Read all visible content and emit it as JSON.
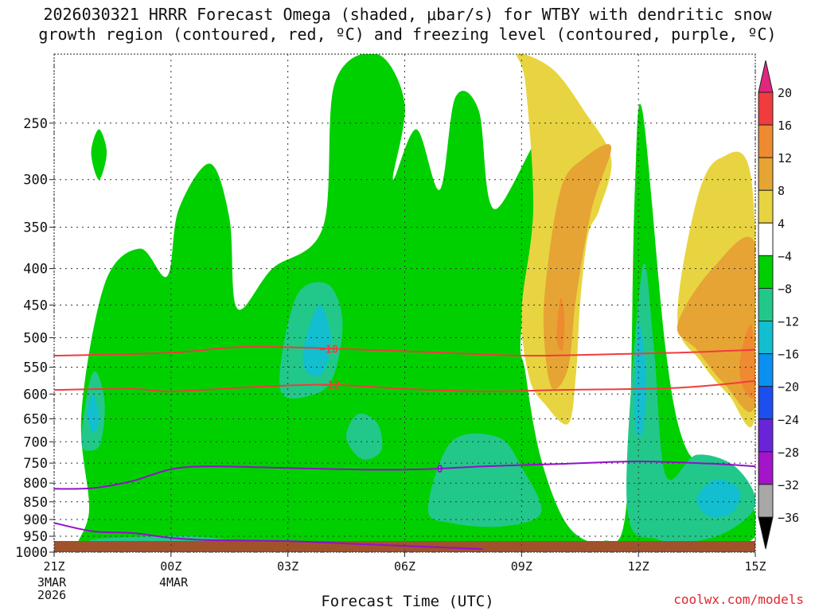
{
  "title": {
    "line1": "2026030321 HRRR Forecast Omega (shaded, μbar/s) for WTBY with dendritic snow",
    "line2": "growth region (contoured, red, ºC) and freezing level (contoured, purple, ºC)"
  },
  "xlabel": "Forecast Time (UTC)",
  "credit": "coolwx.com/models",
  "chart_data": {
    "type": "heatmap",
    "title": "2026030321 HRRR Forecast Omega (shaded, μbar/s) for WTBY with dendritic snow growth region (contoured, red, ºC) and freezing level (contoured, purple, ºC)",
    "xlabel": "Forecast Time (UTC)",
    "ylabel": "",
    "x_ticks": [
      {
        "hour": 0,
        "label": "21Z"
      },
      {
        "hour": 3,
        "label": "00Z"
      },
      {
        "hour": 6,
        "label": "03Z"
      },
      {
        "hour": 9,
        "label": "06Z"
      },
      {
        "hour": 12,
        "label": "09Z"
      },
      {
        "hour": 15,
        "label": "12Z"
      },
      {
        "hour": 18,
        "label": "15Z"
      }
    ],
    "x_date_labels": [
      {
        "hour": 0,
        "lines": [
          "3MAR",
          "2026"
        ]
      },
      {
        "hour": 3,
        "lines": [
          "4MAR"
        ]
      }
    ],
    "y_ticks": [
      250,
      300,
      350,
      400,
      450,
      500,
      550,
      600,
      650,
      700,
      750,
      800,
      850,
      900,
      950,
      1000
    ],
    "ylim": [
      1000,
      200
    ],
    "xlim_hours": [
      0,
      18
    ],
    "grid": true,
    "colorbar": {
      "labels": [
        "20",
        "16",
        "12",
        "8",
        "4",
        "-4",
        "-8",
        "-12",
        "-16",
        "-20",
        "-24",
        "-28",
        "-32",
        "-36"
      ],
      "colors": [
        "#e0267f",
        "#f03c3c",
        "#ee8a30",
        "#e6a435",
        "#e8d440",
        "#ffffff",
        "#00d000",
        "#22c88a",
        "#12bed0",
        "#0a90f0",
        "#1c4ef0",
        "#6a24d8",
        "#a414c8",
        "#a8a8a8",
        "#000000"
      ]
    },
    "omega_regions": [
      {
        "level": "-4 to -8",
        "color": "#00d000",
        "hours_pressures": [
          [
            0.6,
            990
          ],
          [
            0.9,
            870
          ],
          [
            0.7,
            640
          ],
          [
            1.3,
            420
          ],
          [
            2.2,
            375
          ],
          [
            2.9,
            410
          ],
          [
            3.2,
            330
          ],
          [
            4.0,
            285
          ],
          [
            4.5,
            340
          ],
          [
            4.7,
            455
          ],
          [
            5.6,
            400
          ],
          [
            6.9,
            350
          ],
          [
            7.2,
            220
          ],
          [
            8.3,
            200
          ],
          [
            9.0,
            235
          ],
          [
            8.7,
            300
          ],
          [
            9.3,
            255
          ],
          [
            9.9,
            310
          ],
          [
            10.3,
            230
          ],
          [
            10.9,
            240
          ],
          [
            11.3,
            330
          ],
          [
            12.6,
            260
          ],
          [
            12.0,
            480
          ],
          [
            12.1,
            560
          ],
          [
            12.5,
            740
          ],
          [
            13.2,
            920
          ],
          [
            14.1,
            965
          ],
          [
            14.7,
            850
          ],
          [
            14.9,
            320
          ],
          [
            15.1,
            240
          ],
          [
            15.7,
            520
          ],
          [
            16.2,
            710
          ],
          [
            16.9,
            760
          ],
          [
            17.7,
            800
          ],
          [
            18.0,
            950
          ],
          [
            16.8,
            975
          ],
          [
            15.1,
            970
          ],
          [
            13.6,
            985
          ],
          [
            11.3,
            1005
          ],
          [
            8.0,
            1000
          ],
          [
            6.0,
            985
          ],
          [
            3.5,
            990
          ],
          [
            1.5,
            1005
          ]
        ]
      },
      {
        "level": "-4 to -8 (isolated)",
        "color": "#00d000",
        "hours_pressures": [
          [
            1.15,
            255
          ],
          [
            1.35,
            275
          ],
          [
            1.15,
            300
          ],
          [
            0.95,
            275
          ]
        ]
      },
      {
        "level": "-8 to -12",
        "color": "#22c88a",
        "hours_pressures": [
          [
            0.7,
            700
          ],
          [
            0.9,
            580
          ],
          [
            1.1,
            560
          ],
          [
            1.3,
            620
          ],
          [
            1.2,
            700
          ],
          [
            0.95,
            720
          ]
        ]
      },
      {
        "level": "-8 to -12",
        "color": "#22c88a",
        "hours_pressures": [
          [
            5.8,
            590
          ],
          [
            6.2,
            440
          ],
          [
            7.0,
            420
          ],
          [
            7.4,
            470
          ],
          [
            7.2,
            560
          ],
          [
            6.7,
            600
          ]
        ]
      },
      {
        "level": "-8 to -12",
        "color": "#22c88a",
        "hours_pressures": [
          [
            7.5,
            690
          ],
          [
            7.8,
            640
          ],
          [
            8.3,
            660
          ],
          [
            8.4,
            720
          ],
          [
            7.9,
            740
          ]
        ]
      },
      {
        "level": "-8 to -12",
        "color": "#22c88a",
        "hours_pressures": [
          [
            9.6,
            870
          ],
          [
            10.2,
            700
          ],
          [
            11.4,
            690
          ],
          [
            12.0,
            760
          ],
          [
            12.5,
            880
          ],
          [
            11.5,
            920
          ],
          [
            10.2,
            910
          ]
        ]
      },
      {
        "level": "-8 to -12",
        "color": "#22c88a",
        "hours_pressures": [
          [
            14.7,
            850
          ],
          [
            15.1,
            400
          ],
          [
            15.4,
            520
          ],
          [
            15.7,
            780
          ],
          [
            16.5,
            730
          ],
          [
            17.5,
            760
          ],
          [
            18.0,
            860
          ],
          [
            17.0,
            950
          ],
          [
            15.5,
            960
          ]
        ]
      },
      {
        "level": "-8 to -12",
        "color": "#22c88a",
        "hours_pressures": [
          [
            0.9,
            965
          ],
          [
            1.5,
            955
          ],
          [
            3.5,
            950
          ],
          [
            5.0,
            975
          ],
          [
            3.0,
            985
          ],
          [
            1.3,
            990
          ]
        ]
      },
      {
        "level": "-12 to -16",
        "color": "#12bed0",
        "hours_pressures": [
          [
            6.4,
            520
          ],
          [
            6.8,
            450
          ],
          [
            7.1,
            500
          ],
          [
            6.9,
            560
          ],
          [
            6.5,
            560
          ]
        ]
      },
      {
        "level": "-12 to -16",
        "color": "#12bed0",
        "hours_pressures": [
          [
            14.9,
            650
          ],
          [
            15.0,
            480
          ],
          [
            15.2,
            560
          ],
          [
            15.1,
            680
          ]
        ]
      },
      {
        "level": "-12 to -16",
        "color": "#12bed0",
        "hours_pressures": [
          [
            16.5,
            840
          ],
          [
            17.0,
            790
          ],
          [
            17.6,
            820
          ],
          [
            17.4,
            880
          ],
          [
            16.8,
            890
          ]
        ]
      },
      {
        "level": "-12 to -16",
        "color": "#12bed0",
        "hours_pressures": [
          [
            0.85,
            640
          ],
          [
            1.0,
            600
          ],
          [
            1.15,
            650
          ],
          [
            1.0,
            680
          ]
        ]
      },
      {
        "level": "4 to 8",
        "color": "#e8d440",
        "hours_pressures": [
          [
            12.0,
            460
          ],
          [
            12.3,
            330
          ],
          [
            12.1,
            220
          ],
          [
            11.9,
            200
          ],
          [
            12.8,
            210
          ],
          [
            13.6,
            240
          ],
          [
            14.3,
            280
          ],
          [
            14.0,
            330
          ],
          [
            13.7,
            360
          ],
          [
            13.5,
            450
          ],
          [
            13.4,
            560
          ],
          [
            13.2,
            660
          ],
          [
            12.6,
            620
          ],
          [
            12.2,
            570
          ]
        ]
      },
      {
        "level": "4 to 8",
        "color": "#e8d440",
        "hours_pressures": [
          [
            16.0,
            470
          ],
          [
            16.5,
            320
          ],
          [
            17.1,
            280
          ],
          [
            17.9,
            300
          ],
          [
            18.0,
            640
          ],
          [
            17.3,
            600
          ],
          [
            16.6,
            540
          ]
        ]
      },
      {
        "level": "8 to 12",
        "color": "#e6a435",
        "hours_pressures": [
          [
            12.6,
            430
          ],
          [
            13.0,
            310
          ],
          [
            13.6,
            280
          ],
          [
            14.3,
            270
          ],
          [
            13.8,
            330
          ],
          [
            13.4,
            440
          ],
          [
            13.2,
            550
          ],
          [
            12.8,
            590
          ],
          [
            12.6,
            520
          ]
        ]
      },
      {
        "level": "8 to 12",
        "color": "#e6a435",
        "hours_pressures": [
          [
            16.0,
            480
          ],
          [
            16.9,
            400
          ],
          [
            18.0,
            370
          ],
          [
            18.0,
            620
          ],
          [
            17.2,
            580
          ],
          [
            16.5,
            520
          ]
        ]
      },
      {
        "level": "12 to 16",
        "color": "#ee8a30",
        "hours_pressures": [
          [
            12.9,
            500
          ],
          [
            13.0,
            440
          ],
          [
            13.1,
            470
          ],
          [
            13.05,
            520
          ]
        ]
      },
      {
        "level": "12 to 16",
        "color": "#ee8a30",
        "hours_pressures": [
          [
            17.6,
            540
          ],
          [
            17.9,
            480
          ],
          [
            18.0,
            600
          ],
          [
            17.7,
            590
          ]
        ]
      }
    ],
    "contours": [
      {
        "name": "-18",
        "color": "#f03c3c",
        "label_hour": 7.05,
        "points": [
          [
            0,
            530
          ],
          [
            3,
            525
          ],
          [
            5,
            515
          ],
          [
            8,
            520
          ],
          [
            10,
            525
          ],
          [
            12,
            530
          ],
          [
            14,
            528
          ],
          [
            16,
            525
          ],
          [
            18,
            520
          ]
        ]
      },
      {
        "name": "-12",
        "color": "#f03c3c",
        "label_hour": 7.1,
        "points": [
          [
            0,
            592
          ],
          [
            2,
            590
          ],
          [
            3,
            595
          ],
          [
            5,
            587
          ],
          [
            7,
            582
          ],
          [
            9,
            590
          ],
          [
            11,
            595
          ],
          [
            13,
            592
          ],
          [
            16,
            588
          ],
          [
            18,
            575
          ]
        ]
      },
      {
        "name": "0",
        "color": "#9410c8",
        "label_hour": 9.9,
        "points": [
          [
            0,
            815
          ],
          [
            1,
            813
          ],
          [
            2,
            795
          ],
          [
            3,
            765
          ],
          [
            4,
            758
          ],
          [
            6,
            762
          ],
          [
            8,
            766
          ],
          [
            9.5,
            765
          ],
          [
            11,
            758
          ],
          [
            13,
            752
          ],
          [
            15,
            746
          ],
          [
            17,
            752
          ],
          [
            18,
            758
          ]
        ]
      },
      {
        "name": "0 (low)",
        "color": "#9410c8",
        "label_hour": null,
        "points": [
          [
            0,
            910
          ],
          [
            1,
            935
          ],
          [
            2,
            940
          ],
          [
            3,
            955
          ],
          [
            4,
            962
          ],
          [
            6,
            965
          ],
          [
            8,
            975
          ],
          [
            10,
            985
          ],
          [
            11,
            990
          ]
        ]
      }
    ],
    "ground_color": "#a0522d"
  }
}
